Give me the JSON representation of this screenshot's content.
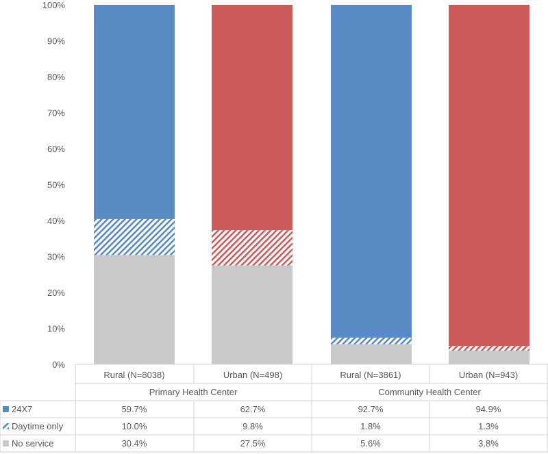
{
  "chart_data": {
    "type": "bar",
    "stacked": true,
    "ylim": [
      0,
      100
    ],
    "yticks": [
      "0%",
      "10%",
      "20%",
      "30%",
      "40%",
      "50%",
      "60%",
      "70%",
      "80%",
      "90%",
      "100%"
    ],
    "grid": false,
    "legend": "data-table-left",
    "groups": [
      {
        "label": "Primary Health Center",
        "categories": [
          "Rural (N=8038)",
          "Urban (N=498)"
        ]
      },
      {
        "label": "Community Health Center",
        "categories": [
          "Rural (N=3861)",
          "Urban (N=943)"
        ]
      }
    ],
    "categories": [
      "Rural (N=8038)",
      "Urban (N=498)",
      "Rural (N=3861)",
      "Urban (N=943)"
    ],
    "bar_colors": [
      "#5a8ac6",
      "#cd5b5b",
      "#5a8ac6",
      "#cd5b5b"
    ],
    "series": [
      {
        "name": "No service",
        "values": [
          30.4,
          27.5,
          5.6,
          3.8
        ],
        "labels": [
          "30.4%",
          "27.5%",
          "5.6%",
          "3.8%"
        ],
        "color": "#c9c9c9",
        "pattern": "solid-gray"
      },
      {
        "name": "Daytime only",
        "values": [
          10.0,
          9.8,
          1.8,
          1.3
        ],
        "labels": [
          "10.0%",
          "9.8%",
          "1.8%",
          "1.3%"
        ],
        "pattern": "diagonal-hatch"
      },
      {
        "name": "24X7",
        "values": [
          59.7,
          62.7,
          92.7,
          94.9
        ],
        "labels": [
          "59.7%",
          "62.7%",
          "92.7%",
          "94.9%"
        ],
        "pattern": "solid"
      }
    ],
    "table_order": [
      "24X7",
      "Daytime only",
      "No service"
    ]
  }
}
